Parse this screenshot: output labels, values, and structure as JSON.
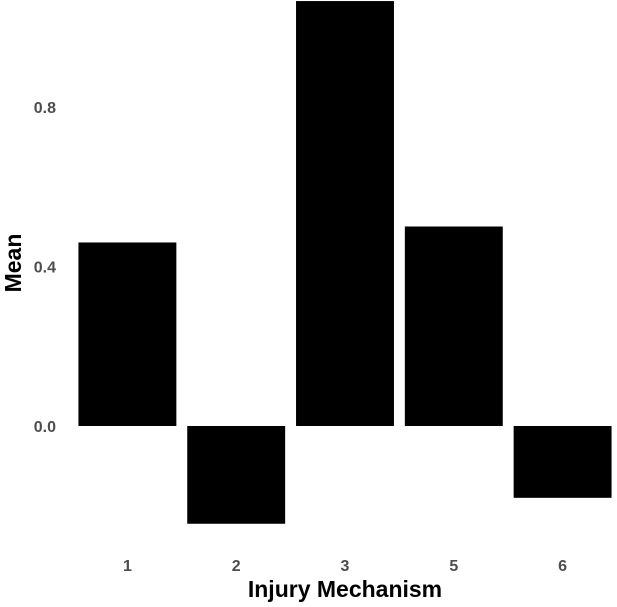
{
  "chart_data": {
    "type": "bar",
    "title": "",
    "xlabel": "Injury Mechanism",
    "ylabel": "Mean",
    "categories": [
      "1",
      "2",
      "3",
      "5",
      "6"
    ],
    "values": [
      0.46,
      -0.245,
      1.065,
      0.5,
      -0.18
    ],
    "ylim": [
      -0.28,
      1.07
    ],
    "yticks": [
      0.0,
      0.4,
      0.8
    ],
    "ytick_labels": [
      "0.0",
      "0.4",
      "0.8"
    ],
    "bar_color": "#000000",
    "grid": false,
    "legend": "none"
  }
}
